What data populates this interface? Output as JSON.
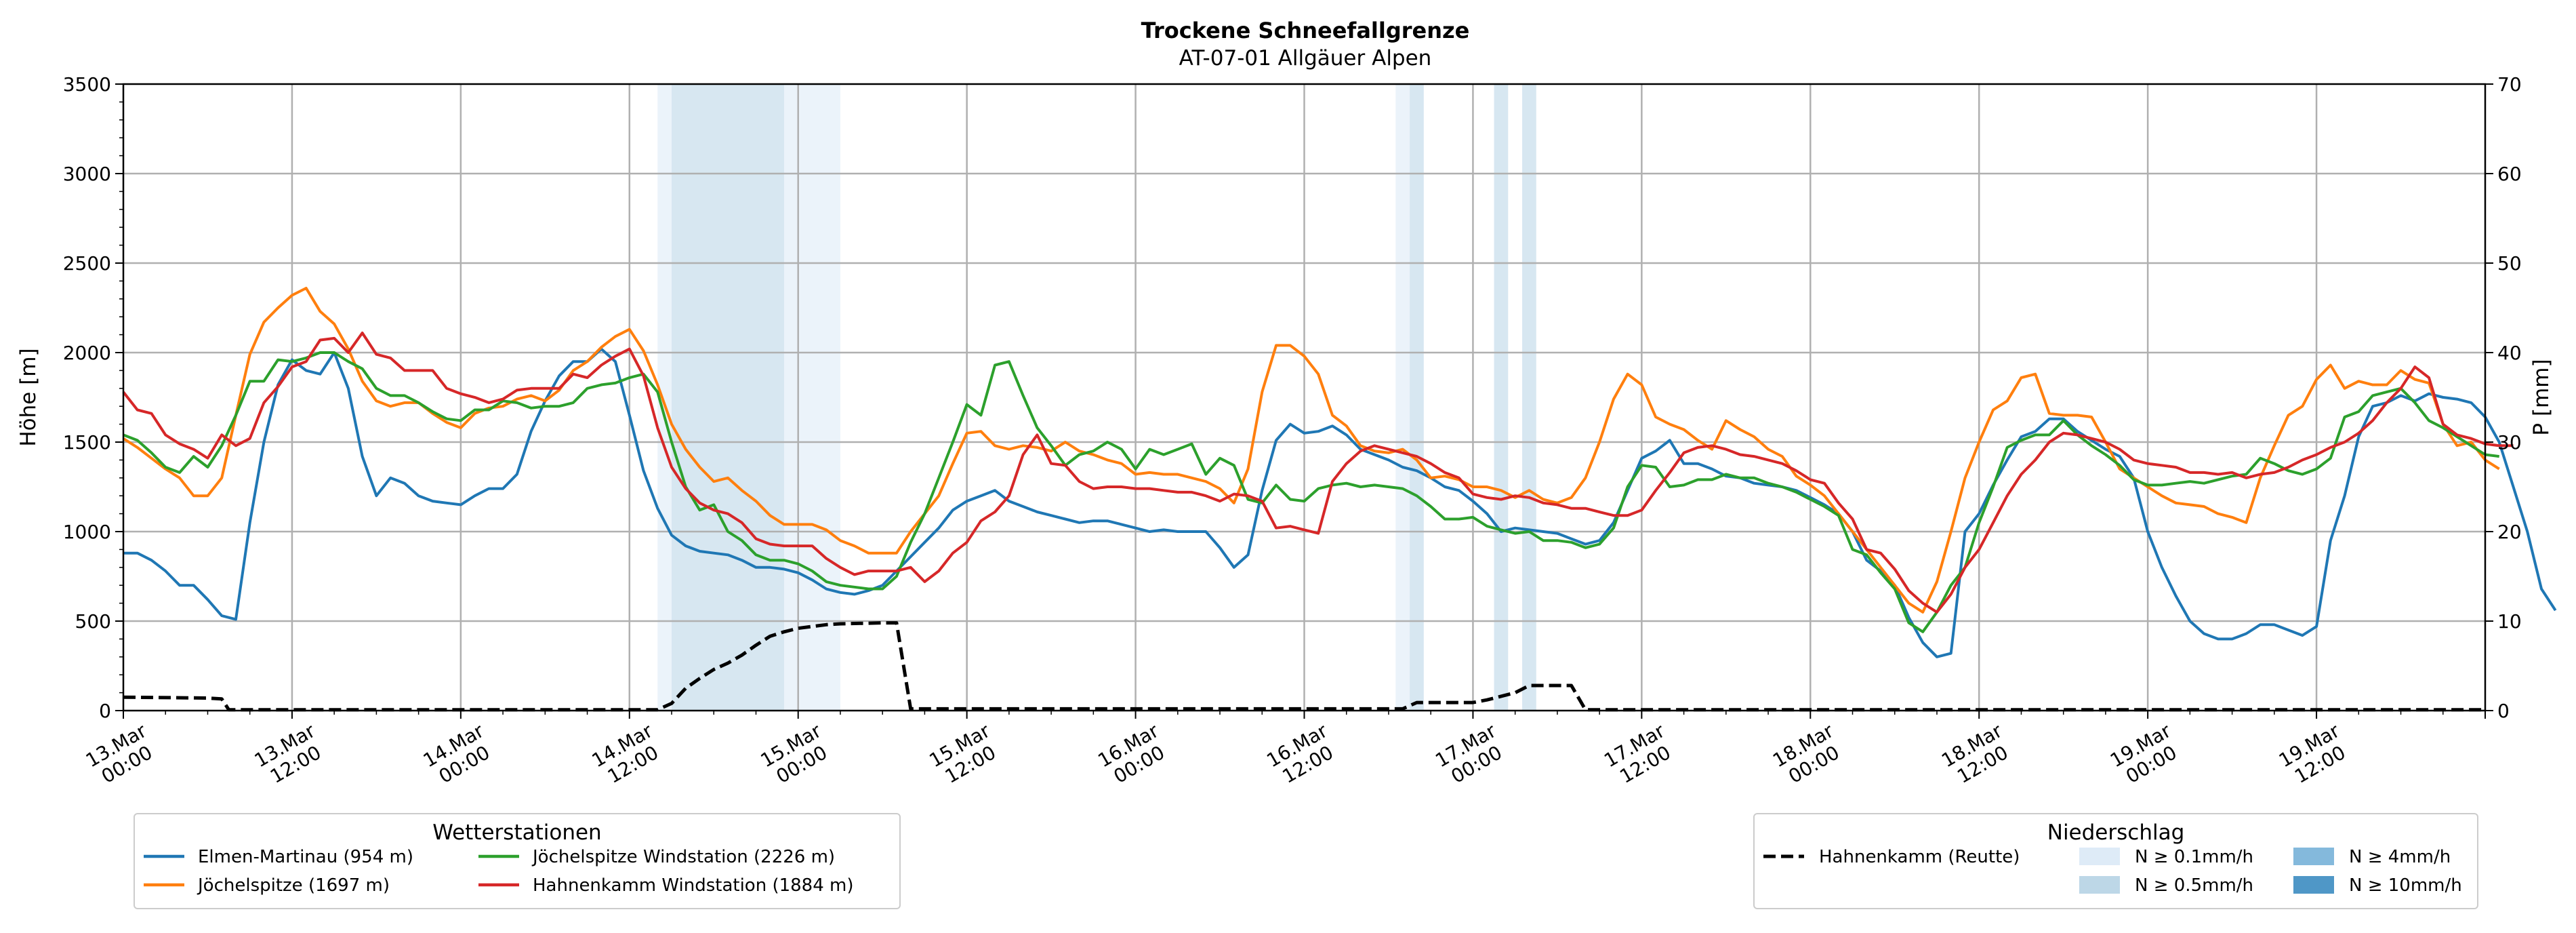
{
  "chart_data": {
    "type": "line",
    "title": "Trockene Schneefallgrenze",
    "subtitle": "AT-07-01 Allgäuer Alpen",
    "ylabel": "Höhe [m]",
    "y2label": "P [mm]",
    "ylim": [
      0,
      3500
    ],
    "y2lim": [
      0,
      70
    ],
    "yticks": [
      "0",
      "500",
      "1000",
      "1500",
      "2000",
      "2500",
      "3000",
      "3500"
    ],
    "y2ticks": [
      "0",
      "10",
      "20",
      "30",
      "40",
      "50",
      "60",
      "70"
    ],
    "xlim_hours": [
      0,
      168
    ],
    "grid": true,
    "xtick_labels": [
      [
        "13.Mar",
        "00:00"
      ],
      [
        "13.Mar",
        "12:00"
      ],
      [
        "14.Mar",
        "00:00"
      ],
      [
        "14.Mar",
        "12:00"
      ],
      [
        "15.Mar",
        "00:00"
      ],
      [
        "15.Mar",
        "12:00"
      ],
      [
        "16.Mar",
        "00:00"
      ],
      [
        "16.Mar",
        "12:00"
      ],
      [
        "17.Mar",
        "00:00"
      ],
      [
        "17.Mar",
        "12:00"
      ],
      [
        "18.Mar",
        "00:00"
      ],
      [
        "18.Mar",
        "12:00"
      ],
      [
        "19.Mar",
        "00:00"
      ],
      [
        "19.Mar",
        "12:00"
      ]
    ],
    "precip_bands": [
      {
        "from": 38,
        "to": 39,
        "level": "0.1"
      },
      {
        "from": 39,
        "to": 47,
        "level": "0.5"
      },
      {
        "from": 47,
        "to": 51,
        "level": "0.1"
      },
      {
        "from": 90.5,
        "to": 91.5,
        "level": "0.1"
      },
      {
        "from": 91.5,
        "to": 92.5,
        "level": "0.5"
      },
      {
        "from": 97.5,
        "to": 98.5,
        "level": "0.5"
      },
      {
        "from": 99.5,
        "to": 100.5,
        "level": "0.5"
      }
    ],
    "series": [
      {
        "name": "Elmen-Martinau (954 m)",
        "color": "#1f77b4",
        "y": [
          880,
          880,
          840,
          780,
          700,
          700,
          620,
          530,
          510,
          1050,
          1500,
          1820,
          1960,
          1900,
          1880,
          2000,
          1800,
          1420,
          1200,
          1300,
          1270,
          1200,
          1170,
          1160,
          1150,
          1200,
          1240,
          1240,
          1320,
          1560,
          1730,
          1870,
          1950,
          1950,
          2020,
          1950,
          1650,
          1340,
          1130,
          980,
          920,
          890,
          880,
          870,
          840,
          800,
          800,
          790,
          770,
          730,
          680,
          660,
          650,
          670,
          700,
          780,
          860,
          940,
          1020,
          1120,
          1170,
          1200,
          1230,
          1170,
          1140,
          1110,
          1090,
          1070,
          1050,
          1060,
          1060,
          1040,
          1020,
          1000,
          1010,
          1000,
          1000,
          1000,
          910,
          800,
          870,
          1230,
          1510,
          1600,
          1550,
          1560,
          1590,
          1540,
          1460,
          1430,
          1400,
          1360,
          1340,
          1300,
          1250,
          1230,
          1170,
          1100,
          1000,
          1020,
          1010,
          1000,
          990,
          960,
          930,
          950,
          1050,
          1230,
          1410,
          1450,
          1510,
          1380,
          1380,
          1350,
          1310,
          1300,
          1270,
          1260,
          1250,
          1230,
          1190,
          1150,
          1100,
          1000,
          840,
          780,
          700,
          520,
          380,
          300,
          320,
          1000,
          1100,
          1260,
          1400,
          1530,
          1560,
          1630,
          1630,
          1560,
          1510,
          1460,
          1420,
          1300,
          1000,
          800,
          640,
          500,
          430,
          400,
          400,
          430,
          480,
          480,
          450,
          420,
          470,
          950,
          1200,
          1530,
          1700,
          1720,
          1760,
          1730,
          1770,
          1750,
          1740,
          1720,
          1640,
          1500,
          1250,
          1000,
          680,
          560
        ]
      },
      {
        "name": "Jöchelspitze (1697 m)",
        "color": "#ff7f0e",
        "y": [
          1520,
          1470,
          1410,
          1350,
          1300,
          1200,
          1200,
          1300,
          1650,
          1990,
          2170,
          2250,
          2320,
          2360,
          2230,
          2160,
          2020,
          1840,
          1730,
          1700,
          1720,
          1720,
          1660,
          1610,
          1580,
          1660,
          1690,
          1700,
          1740,
          1760,
          1730,
          1790,
          1900,
          1950,
          2030,
          2090,
          2130,
          2010,
          1820,
          1600,
          1460,
          1360,
          1280,
          1300,
          1230,
          1170,
          1090,
          1040,
          1040,
          1040,
          1010,
          950,
          920,
          880,
          880,
          880,
          1000,
          1100,
          1200,
          1380,
          1550,
          1560,
          1480,
          1460,
          1480,
          1470,
          1450,
          1500,
          1450,
          1430,
          1400,
          1380,
          1320,
          1330,
          1320,
          1320,
          1300,
          1280,
          1240,
          1160,
          1350,
          1780,
          2040,
          2040,
          1980,
          1880,
          1650,
          1590,
          1480,
          1450,
          1440,
          1460,
          1400,
          1300,
          1310,
          1290,
          1250,
          1250,
          1230,
          1190,
          1230,
          1180,
          1160,
          1190,
          1300,
          1500,
          1740,
          1880,
          1820,
          1640,
          1600,
          1570,
          1510,
          1460,
          1620,
          1570,
          1530,
          1460,
          1420,
          1310,
          1260,
          1200,
          1100,
          1000,
          900,
          800,
          700,
          600,
          550,
          720,
          1000,
          1300,
          1500,
          1680,
          1730,
          1860,
          1880,
          1660,
          1650,
          1650,
          1640,
          1500,
          1350,
          1300,
          1250,
          1200,
          1160,
          1150,
          1140,
          1100,
          1080,
          1050,
          1300,
          1480,
          1650,
          1700,
          1850,
          1930,
          1800,
          1840,
          1820,
          1820,
          1900,
          1850,
          1830,
          1600,
          1480,
          1500,
          1400,
          1350
        ]
      },
      {
        "name": "Jöchelspitze Windstation (2226 m)",
        "color": "#2ca02c",
        "y": [
          1540,
          1510,
          1440,
          1360,
          1330,
          1420,
          1360,
          1480,
          1650,
          1840,
          1840,
          1960,
          1950,
          1970,
          2000,
          2000,
          1950,
          1910,
          1800,
          1760,
          1760,
          1720,
          1670,
          1630,
          1620,
          1680,
          1680,
          1730,
          1720,
          1690,
          1700,
          1700,
          1720,
          1800,
          1820,
          1830,
          1860,
          1880,
          1780,
          1500,
          1250,
          1120,
          1150,
          1000,
          950,
          870,
          840,
          840,
          820,
          780,
          720,
          700,
          690,
          680,
          680,
          750,
          940,
          1100,
          1300,
          1500,
          1710,
          1650,
          1930,
          1950,
          1760,
          1580,
          1480,
          1370,
          1430,
          1450,
          1500,
          1460,
          1350,
          1460,
          1430,
          1460,
          1490,
          1320,
          1410,
          1370,
          1180,
          1160,
          1260,
          1180,
          1170,
          1240,
          1260,
          1270,
          1250,
          1260,
          1250,
          1240,
          1200,
          1140,
          1070,
          1070,
          1080,
          1030,
          1010,
          990,
          1000,
          950,
          950,
          940,
          910,
          930,
          1020,
          1250,
          1370,
          1360,
          1250,
          1260,
          1290,
          1290,
          1320,
          1300,
          1300,
          1270,
          1250,
          1220,
          1180,
          1140,
          1090,
          900,
          870,
          770,
          680,
          490,
          440,
          550,
          700,
          800,
          1050,
          1250,
          1470,
          1510,
          1540,
          1540,
          1620,
          1540,
          1480,
          1430,
          1370,
          1290,
          1260,
          1260,
          1270,
          1280,
          1270,
          1290,
          1310,
          1320,
          1410,
          1380,
          1340,
          1320,
          1350,
          1410,
          1640,
          1670,
          1760,
          1780,
          1800,
          1720,
          1620,
          1580,
          1530,
          1480,
          1430,
          1420
        ]
      },
      {
        "name": "Hahnenkamm Windstation (1884 m)",
        "color": "#d62728",
        "y": [
          1780,
          1680,
          1660,
          1540,
          1490,
          1460,
          1410,
          1540,
          1480,
          1520,
          1720,
          1810,
          1920,
          1950,
          2070,
          2080,
          2000,
          2110,
          1990,
          1970,
          1900,
          1900,
          1900,
          1800,
          1770,
          1750,
          1720,
          1740,
          1790,
          1800,
          1800,
          1800,
          1880,
          1860,
          1930,
          1980,
          2020,
          1870,
          1580,
          1360,
          1240,
          1160,
          1120,
          1100,
          1050,
          960,
          930,
          920,
          920,
          920,
          850,
          800,
          760,
          780,
          780,
          780,
          800,
          720,
          780,
          880,
          940,
          1060,
          1110,
          1200,
          1430,
          1540,
          1380,
          1370,
          1280,
          1240,
          1250,
          1250,
          1240,
          1240,
          1230,
          1220,
          1220,
          1200,
          1170,
          1210,
          1200,
          1170,
          1020,
          1030,
          1010,
          990,
          1280,
          1380,
          1450,
          1480,
          1460,
          1440,
          1420,
          1380,
          1330,
          1300,
          1210,
          1190,
          1180,
          1200,
          1190,
          1160,
          1150,
          1130,
          1130,
          1110,
          1090,
          1090,
          1120,
          1230,
          1330,
          1440,
          1470,
          1480,
          1460,
          1430,
          1420,
          1400,
          1380,
          1340,
          1290,
          1270,
          1160,
          1070,
          900,
          880,
          790,
          670,
          600,
          550,
          650,
          800,
          900,
          1050,
          1200,
          1320,
          1400,
          1500,
          1550,
          1540,
          1520,
          1500,
          1460,
          1400,
          1380,
          1370,
          1360,
          1330,
          1330,
          1320,
          1330,
          1300,
          1320,
          1330,
          1360,
          1400,
          1430,
          1470,
          1500,
          1550,
          1620,
          1720,
          1800,
          1920,
          1860,
          1600,
          1540,
          1520,
          1490,
          1480,
          1480
        ]
      },
      {
        "name": "Hahnenkamm (Reutte)",
        "color": "#000000",
        "dashed": true,
        "axis": "right",
        "points": [
          [
            0,
            1.5
          ],
          [
            6,
            1.4
          ],
          [
            7,
            1.3
          ],
          [
            7.5,
            0.1
          ],
          [
            38,
            0.1
          ],
          [
            39,
            0.8
          ],
          [
            40,
            2.5
          ],
          [
            41,
            3.6
          ],
          [
            42,
            4.6
          ],
          [
            43,
            5.3
          ],
          [
            44,
            6.2
          ],
          [
            45,
            7.3
          ],
          [
            46,
            8.3
          ],
          [
            47,
            8.8
          ],
          [
            48,
            9.2
          ],
          [
            49,
            9.4
          ],
          [
            50,
            9.6
          ],
          [
            51,
            9.7
          ],
          [
            54,
            9.8
          ],
          [
            55,
            9.8
          ],
          [
            56,
            0.2
          ],
          [
            91,
            0.2
          ],
          [
            92,
            0.9
          ],
          [
            96,
            0.9
          ],
          [
            97,
            1.2
          ],
          [
            99,
            2.0
          ],
          [
            100,
            2.8
          ],
          [
            103,
            2.8
          ],
          [
            104,
            0.1
          ],
          [
            168,
            0.1
          ]
        ]
      }
    ],
    "legend_left": {
      "title": "Wetterstationen",
      "items": [
        "Elmen-Martinau (954 m)",
        "Jöchelspitze (1697 m)",
        "Jöchelspitze Windstation (2226 m)",
        "Hahnenkamm Windstation (1884 m)"
      ]
    },
    "legend_right": {
      "title": "Niederschlag",
      "items": [
        {
          "label": "Hahnenkamm (Reutte)",
          "kind": "dashed-line",
          "color": "#000000"
        },
        {
          "label": "N ≥ 0.1mm/h",
          "kind": "patch",
          "color": "#deebf7"
        },
        {
          "label": "N ≥ 0.5mm/h",
          "kind": "patch",
          "color": "#bdd7e7"
        },
        {
          "label": "N ≥ 4mm/h",
          "kind": "patch",
          "color": "#84b9dc"
        },
        {
          "label": "N ≥ 10mm/h",
          "kind": "patch",
          "color": "#4f97c7"
        }
      ]
    }
  }
}
